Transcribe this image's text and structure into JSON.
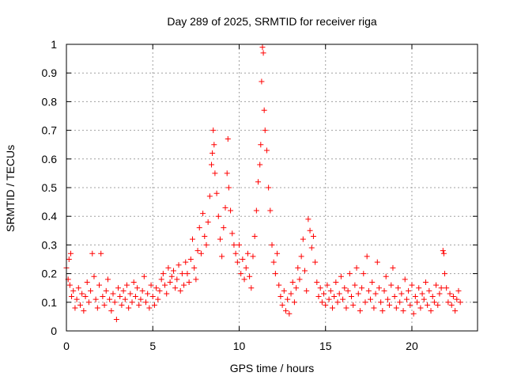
{
  "chart_data": {
    "type": "scatter",
    "title": "Day 289 of 2025, SRMTID for receiver riga",
    "xlabel": "GPS time / hours",
    "ylabel": "SRMTID / TECUs",
    "xlim": [
      0,
      23.8
    ],
    "ylim": [
      0,
      1
    ],
    "xticks": [
      0,
      5,
      10,
      15,
      20
    ],
    "xtick_labels": [
      "0",
      "5",
      "10",
      "15",
      "20"
    ],
    "yticks": [
      0,
      0.1,
      0.2,
      0.3,
      0.4,
      0.5,
      0.6,
      0.7,
      0.8,
      0.9,
      1
    ],
    "ytick_labels": [
      "0",
      "0.1",
      "0.2",
      "0.3",
      "0.4",
      "0.5",
      "0.6",
      "0.7",
      "0.8",
      "0.9",
      "1"
    ],
    "grid": true,
    "marker": "+",
    "marker_color": "#ff0000",
    "series": [
      {
        "name": "SRMTID",
        "points": [
          [
            0.0,
            0.22
          ],
          [
            0.1,
            0.18
          ],
          [
            0.15,
            0.25
          ],
          [
            0.2,
            0.16
          ],
          [
            0.25,
            0.27
          ],
          [
            0.3,
            0.12
          ],
          [
            0.4,
            0.14
          ],
          [
            0.5,
            0.08
          ],
          [
            0.6,
            0.11
          ],
          [
            0.7,
            0.15
          ],
          [
            0.8,
            0.09
          ],
          [
            0.9,
            0.13
          ],
          [
            1.0,
            0.07
          ],
          [
            1.1,
            0.12
          ],
          [
            1.2,
            0.17
          ],
          [
            1.3,
            0.1
          ],
          [
            1.4,
            0.14
          ],
          [
            1.5,
            0.27
          ],
          [
            1.6,
            0.19
          ],
          [
            1.7,
            0.11
          ],
          [
            1.8,
            0.08
          ],
          [
            1.9,
            0.16
          ],
          [
            2.0,
            0.27
          ],
          [
            2.1,
            0.12
          ],
          [
            2.2,
            0.09
          ],
          [
            2.3,
            0.14
          ],
          [
            2.4,
            0.18
          ],
          [
            2.5,
            0.11
          ],
          [
            2.6,
            0.07
          ],
          [
            2.7,
            0.13
          ],
          [
            2.8,
            0.1
          ],
          [
            2.9,
            0.04
          ],
          [
            3.0,
            0.15
          ],
          [
            3.1,
            0.12
          ],
          [
            3.2,
            0.09
          ],
          [
            3.3,
            0.14
          ],
          [
            3.4,
            0.11
          ],
          [
            3.5,
            0.16
          ],
          [
            3.6,
            0.08
          ],
          [
            3.7,
            0.13
          ],
          [
            3.8,
            0.1
          ],
          [
            3.9,
            0.17
          ],
          [
            4.0,
            0.12
          ],
          [
            4.1,
            0.15
          ],
          [
            4.2,
            0.09
          ],
          [
            4.3,
            0.11
          ],
          [
            4.4,
            0.14
          ],
          [
            4.5,
            0.19
          ],
          [
            4.6,
            0.1
          ],
          [
            4.7,
            0.13
          ],
          [
            4.8,
            0.08
          ],
          [
            4.9,
            0.16
          ],
          [
            5.0,
            0.12
          ],
          [
            5.1,
            0.09
          ],
          [
            5.2,
            0.15
          ],
          [
            5.3,
            0.11
          ],
          [
            5.4,
            0.14
          ],
          [
            5.5,
            0.18
          ],
          [
            5.6,
            0.2
          ],
          [
            5.7,
            0.16
          ],
          [
            5.8,
            0.13
          ],
          [
            5.9,
            0.22
          ],
          [
            6.0,
            0.17
          ],
          [
            6.1,
            0.19
          ],
          [
            6.2,
            0.21
          ],
          [
            6.3,
            0.15
          ],
          [
            6.4,
            0.18
          ],
          [
            6.5,
            0.23
          ],
          [
            6.6,
            0.14
          ],
          [
            6.7,
            0.2
          ],
          [
            6.8,
            0.16
          ],
          [
            6.9,
            0.24
          ],
          [
            7.0,
            0.2
          ],
          [
            7.1,
            0.17
          ],
          [
            7.2,
            0.25
          ],
          [
            7.3,
            0.32
          ],
          [
            7.4,
            0.22
          ],
          [
            7.5,
            0.18
          ],
          [
            7.6,
            0.28
          ],
          [
            7.7,
            0.36
          ],
          [
            7.8,
            0.27
          ],
          [
            7.9,
            0.41
          ],
          [
            8.0,
            0.33
          ],
          [
            8.1,
            0.3
          ],
          [
            8.2,
            0.38
          ],
          [
            8.3,
            0.47
          ],
          [
            8.4,
            0.58
          ],
          [
            8.45,
            0.62
          ],
          [
            8.5,
            0.7
          ],
          [
            8.55,
            0.65
          ],
          [
            8.6,
            0.55
          ],
          [
            8.7,
            0.48
          ],
          [
            8.8,
            0.4
          ],
          [
            8.9,
            0.32
          ],
          [
            9.0,
            0.26
          ],
          [
            9.1,
            0.36
          ],
          [
            9.2,
            0.43
          ],
          [
            9.3,
            0.55
          ],
          [
            9.35,
            0.67
          ],
          [
            9.4,
            0.5
          ],
          [
            9.5,
            0.42
          ],
          [
            9.6,
            0.34
          ],
          [
            9.7,
            0.3
          ],
          [
            9.8,
            0.27
          ],
          [
            9.9,
            0.24
          ],
          [
            10.0,
            0.3
          ],
          [
            10.1,
            0.2
          ],
          [
            10.2,
            0.25
          ],
          [
            10.3,
            0.18
          ],
          [
            10.4,
            0.22
          ],
          [
            10.5,
            0.27
          ],
          [
            10.6,
            0.19
          ],
          [
            10.7,
            0.15
          ],
          [
            10.8,
            0.26
          ],
          [
            10.9,
            0.33
          ],
          [
            11.0,
            0.42
          ],
          [
            11.1,
            0.52
          ],
          [
            11.2,
            0.58
          ],
          [
            11.25,
            0.65
          ],
          [
            11.3,
            0.87
          ],
          [
            11.35,
            0.99
          ],
          [
            11.4,
            0.97
          ],
          [
            11.45,
            0.77
          ],
          [
            11.5,
            0.7
          ],
          [
            11.6,
            0.63
          ],
          [
            11.7,
            0.5
          ],
          [
            11.8,
            0.42
          ],
          [
            11.9,
            0.3
          ],
          [
            12.0,
            0.24
          ],
          [
            12.1,
            0.2
          ],
          [
            12.2,
            0.27
          ],
          [
            12.3,
            0.16
          ],
          [
            12.4,
            0.12
          ],
          [
            12.5,
            0.09
          ],
          [
            12.6,
            0.14
          ],
          [
            12.7,
            0.07
          ],
          [
            12.8,
            0.11
          ],
          [
            12.9,
            0.06
          ],
          [
            13.0,
            0.13
          ],
          [
            13.1,
            0.17
          ],
          [
            13.2,
            0.1
          ],
          [
            13.3,
            0.15
          ],
          [
            13.4,
            0.22
          ],
          [
            13.5,
            0.18
          ],
          [
            13.6,
            0.26
          ],
          [
            13.7,
            0.32
          ],
          [
            13.8,
            0.21
          ],
          [
            13.9,
            0.14
          ],
          [
            14.0,
            0.39
          ],
          [
            14.1,
            0.35
          ],
          [
            14.2,
            0.29
          ],
          [
            14.3,
            0.33
          ],
          [
            14.4,
            0.24
          ],
          [
            14.5,
            0.17
          ],
          [
            14.6,
            0.12
          ],
          [
            14.7,
            0.15
          ],
          [
            14.8,
            0.1
          ],
          [
            14.9,
            0.13
          ],
          [
            15.0,
            0.09
          ],
          [
            15.1,
            0.16
          ],
          [
            15.2,
            0.11
          ],
          [
            15.3,
            0.14
          ],
          [
            15.4,
            0.08
          ],
          [
            15.5,
            0.12
          ],
          [
            15.6,
            0.17
          ],
          [
            15.7,
            0.1
          ],
          [
            15.8,
            0.13
          ],
          [
            15.9,
            0.19
          ],
          [
            16.0,
            0.11
          ],
          [
            16.1,
            0.15
          ],
          [
            16.2,
            0.08
          ],
          [
            16.3,
            0.14
          ],
          [
            16.4,
            0.2
          ],
          [
            16.5,
            0.12
          ],
          [
            16.6,
            0.09
          ],
          [
            16.7,
            0.16
          ],
          [
            16.8,
            0.22
          ],
          [
            16.9,
            0.13
          ],
          [
            17.0,
            0.07
          ],
          [
            17.1,
            0.15
          ],
          [
            17.2,
            0.2
          ],
          [
            17.3,
            0.1
          ],
          [
            17.4,
            0.26
          ],
          [
            17.5,
            0.14
          ],
          [
            17.6,
            0.11
          ],
          [
            17.7,
            0.17
          ],
          [
            17.8,
            0.08
          ],
          [
            17.9,
            0.13
          ],
          [
            18.0,
            0.24
          ],
          [
            18.1,
            0.15
          ],
          [
            18.2,
            0.1
          ],
          [
            18.3,
            0.07
          ],
          [
            18.4,
            0.14
          ],
          [
            18.5,
            0.19
          ],
          [
            18.6,
            0.11
          ],
          [
            18.7,
            0.09
          ],
          [
            18.8,
            0.16
          ],
          [
            18.9,
            0.22
          ],
          [
            19.0,
            0.12
          ],
          [
            19.1,
            0.08
          ],
          [
            19.2,
            0.15
          ],
          [
            19.3,
            0.1
          ],
          [
            19.4,
            0.13
          ],
          [
            19.5,
            0.07
          ],
          [
            19.6,
            0.18
          ],
          [
            19.7,
            0.11
          ],
          [
            19.8,
            0.14
          ],
          [
            19.9,
            0.09
          ],
          [
            20.0,
            0.16
          ],
          [
            20.1,
            0.06
          ],
          [
            20.2,
            0.12
          ],
          [
            20.3,
            0.1
          ],
          [
            20.4,
            0.15
          ],
          [
            20.5,
            0.08
          ],
          [
            20.6,
            0.13
          ],
          [
            20.7,
            0.11
          ],
          [
            20.8,
            0.17
          ],
          [
            20.9,
            0.09
          ],
          [
            21.0,
            0.14
          ],
          [
            21.1,
            0.07
          ],
          [
            21.2,
            0.12
          ],
          [
            21.3,
            0.1
          ],
          [
            21.4,
            0.16
          ],
          [
            21.5,
            0.09
          ],
          [
            21.6,
            0.13
          ],
          [
            21.7,
            0.15
          ],
          [
            21.8,
            0.28
          ],
          [
            21.85,
            0.27
          ],
          [
            21.9,
            0.2
          ],
          [
            22.0,
            0.15
          ],
          [
            22.1,
            0.1
          ],
          [
            22.2,
            0.13
          ],
          [
            22.3,
            0.09
          ],
          [
            22.4,
            0.12
          ],
          [
            22.5,
            0.07
          ],
          [
            22.6,
            0.11
          ],
          [
            22.7,
            0.14
          ],
          [
            22.8,
            0.1
          ]
        ]
      }
    ]
  }
}
